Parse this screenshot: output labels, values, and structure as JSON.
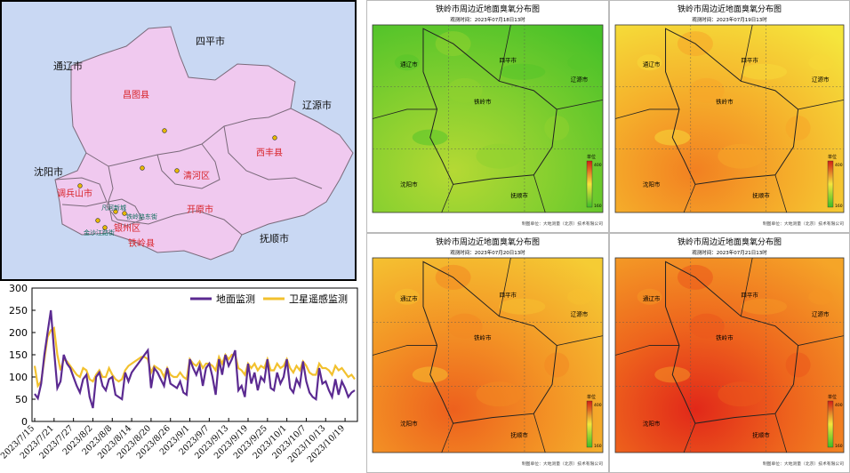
{
  "admin_map": {
    "colors": {
      "sea": "#c9d8f3",
      "region": "#f0c9ef",
      "border": "#7a6a7a",
      "county_label": "#d8242a",
      "neighbor_label": "#111111",
      "site": "#e6b800"
    },
    "neighbors": {
      "siping": "四平市",
      "tongliao": "通辽市",
      "liaoyuan": "辽源市",
      "shenyang": "沈阳市",
      "fushun": "抚顺市"
    },
    "counties": {
      "changtu": "昌图县",
      "xifeng": "西丰县",
      "qinghe": "清河区",
      "diaobingshan": "调兵山市",
      "kaiyuan": "开原市",
      "yinzhou": "银州区",
      "tieling": "铁岭县"
    },
    "sites": {
      "a": "凡河新城",
      "b": "铁岭路东街",
      "c": "金沙江路街"
    }
  },
  "time_series": {
    "colors": {
      "ground": "#5b2a91",
      "satellite": "#f2c12e"
    },
    "legend": {
      "ground": "地面监测",
      "satellite": "卫星遥感监测"
    },
    "chart_data": {
      "type": "line",
      "ylim": [
        0,
        300
      ],
      "yticks": [
        0,
        50,
        100,
        150,
        200,
        250,
        300
      ],
      "x_tick_labels": [
        "2023/7/15",
        "2023/7/21",
        "2023/7/27",
        "2023/8/2",
        "2023/8/8",
        "2023/8/14",
        "2023/8/20",
        "2023/8/26",
        "2023/9/1",
        "2023/9/7",
        "2023/9/13",
        "2023/9/19",
        "2023/9/25",
        "2023/10/1",
        "2023/10/7",
        "2023/10/13",
        "2023/10/19"
      ],
      "x_start": "2023/7/15",
      "x_end": "2023/10/21",
      "series": [
        {
          "name": "地面监测",
          "values": [
            62,
            52,
            85,
            150,
            200,
            250,
            160,
            75,
            90,
            150,
            130,
            120,
            100,
            80,
            65,
            95,
            105,
            55,
            30,
            100,
            110,
            80,
            70,
            95,
            100,
            60,
            55,
            50,
            110,
            90,
            110,
            120,
            130,
            140,
            150,
            160,
            75,
            120,
            110,
            95,
            80,
            120,
            85,
            80,
            75,
            90,
            65,
            60,
            140,
            120,
            105,
            125,
            80,
            120,
            130,
            100,
            60,
            140,
            105,
            150,
            125,
            140,
            160,
            70,
            80,
            55,
            130,
            85,
            110,
            70,
            100,
            90,
            140,
            75,
            70,
            110,
            85,
            100,
            140,
            75,
            65,
            95,
            80,
            135,
            90,
            65,
            55,
            50,
            120,
            85,
            90,
            70,
            55,
            95,
            60,
            90,
            75,
            55,
            65,
            70
          ]
        },
        {
          "name": "卫星遥感监测",
          "values": [
            125,
            80,
            90,
            140,
            190,
            205,
            210,
            150,
            115,
            140,
            135,
            125,
            115,
            105,
            100,
            120,
            115,
            95,
            90,
            105,
            115,
            100,
            100,
            120,
            105,
            95,
            90,
            95,
            115,
            125,
            130,
            135,
            140,
            145,
            145,
            140,
            110,
            125,
            120,
            115,
            100,
            120,
            105,
            100,
            100,
            110,
            100,
            95,
            140,
            130,
            125,
            135,
            120,
            130,
            130,
            125,
            115,
            145,
            130,
            150,
            140,
            150,
            150,
            120,
            115,
            105,
            130,
            120,
            130,
            115,
            125,
            120,
            140,
            115,
            115,
            130,
            120,
            125,
            140,
            120,
            110,
            125,
            115,
            135,
            125,
            110,
            105,
            105,
            130,
            120,
            120,
            115,
            105,
            125,
            115,
            120,
            110,
            100,
            105,
            95
          ]
        }
      ]
    }
  },
  "ozone_panels": [
    {
      "title": "铁岭市周边近地面臭氧分布图",
      "subtitle": "观测时间：2023年07月18日13时",
      "credit": "制图单位：大地测量（北京）技术有限公司",
      "level": 0.15
    },
    {
      "title": "铁岭市周边近地面臭氧分布图",
      "subtitle": "观测时间：2023年07月19日13时",
      "credit": "制图单位：大地测量（北京）技术有限公司",
      "level": 0.62
    },
    {
      "title": "铁岭市周边近地面臭氧分布图",
      "subtitle": "观测时间：2023年07月20日13时",
      "credit": "制图单位：大地测量（北京）技术有限公司",
      "level": 0.7
    },
    {
      "title": "铁岭市周边近地面臭氧分布图",
      "subtitle": "观测时间：2023年07月21日13时",
      "credit": "制图单位：大地测量（北京）技术有限公司",
      "level": 0.82
    }
  ],
  "ozone_map_labels": {
    "tongliao": "通辽市",
    "siping": "四平市",
    "tieling": "铁岭市",
    "liaoyuan": "辽源市",
    "shenyang": "沈阳市",
    "fushun": "抚顺市",
    "legend_title": "单位",
    "legend_ticks": [
      "400",
      "160"
    ]
  }
}
